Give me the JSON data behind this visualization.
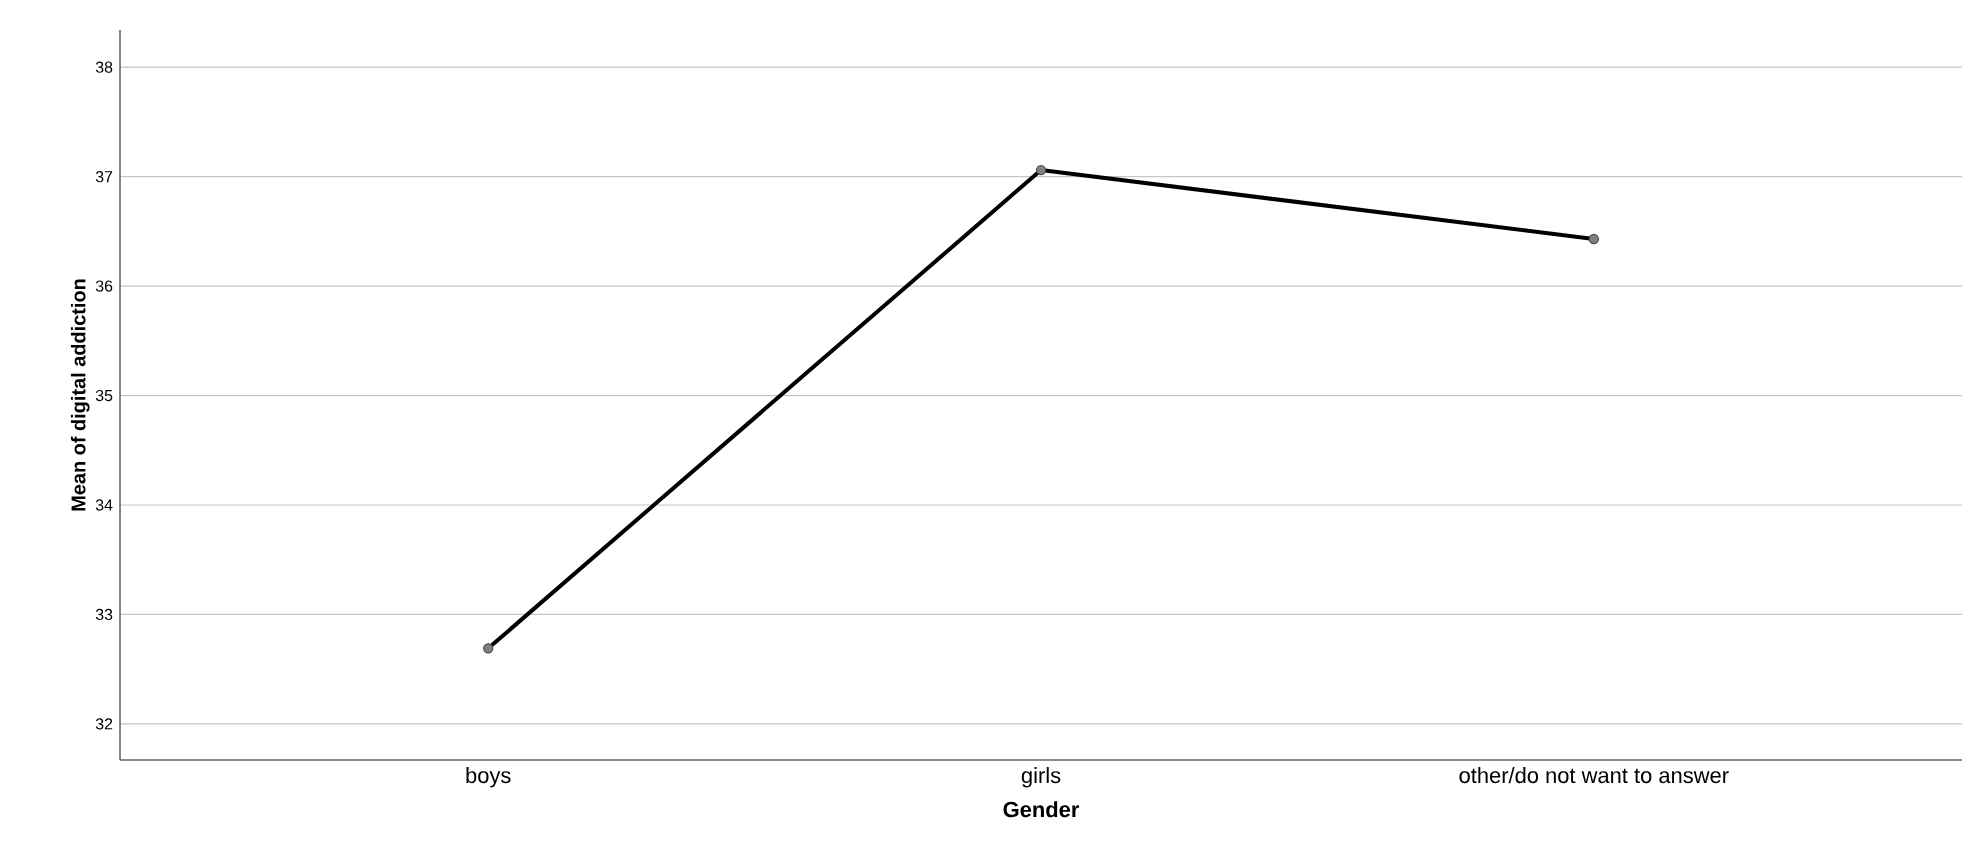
{
  "chart_data": {
    "type": "line",
    "xlabel": "Gender",
    "ylabel": "Mean of digital  addiction",
    "categories": [
      "boys",
      "girls",
      "other/do not want to answer"
    ],
    "series": [
      {
        "color": "#000000",
        "values": [
          32.69,
          37.06,
          36.43
        ]
      }
    ],
    "ylim": [
      31.67,
      38.34
    ],
    "yticks": [
      32,
      33,
      34,
      35,
      36,
      37,
      38
    ],
    "grid": "y",
    "marker": "circle",
    "line_style": "solid"
  }
}
